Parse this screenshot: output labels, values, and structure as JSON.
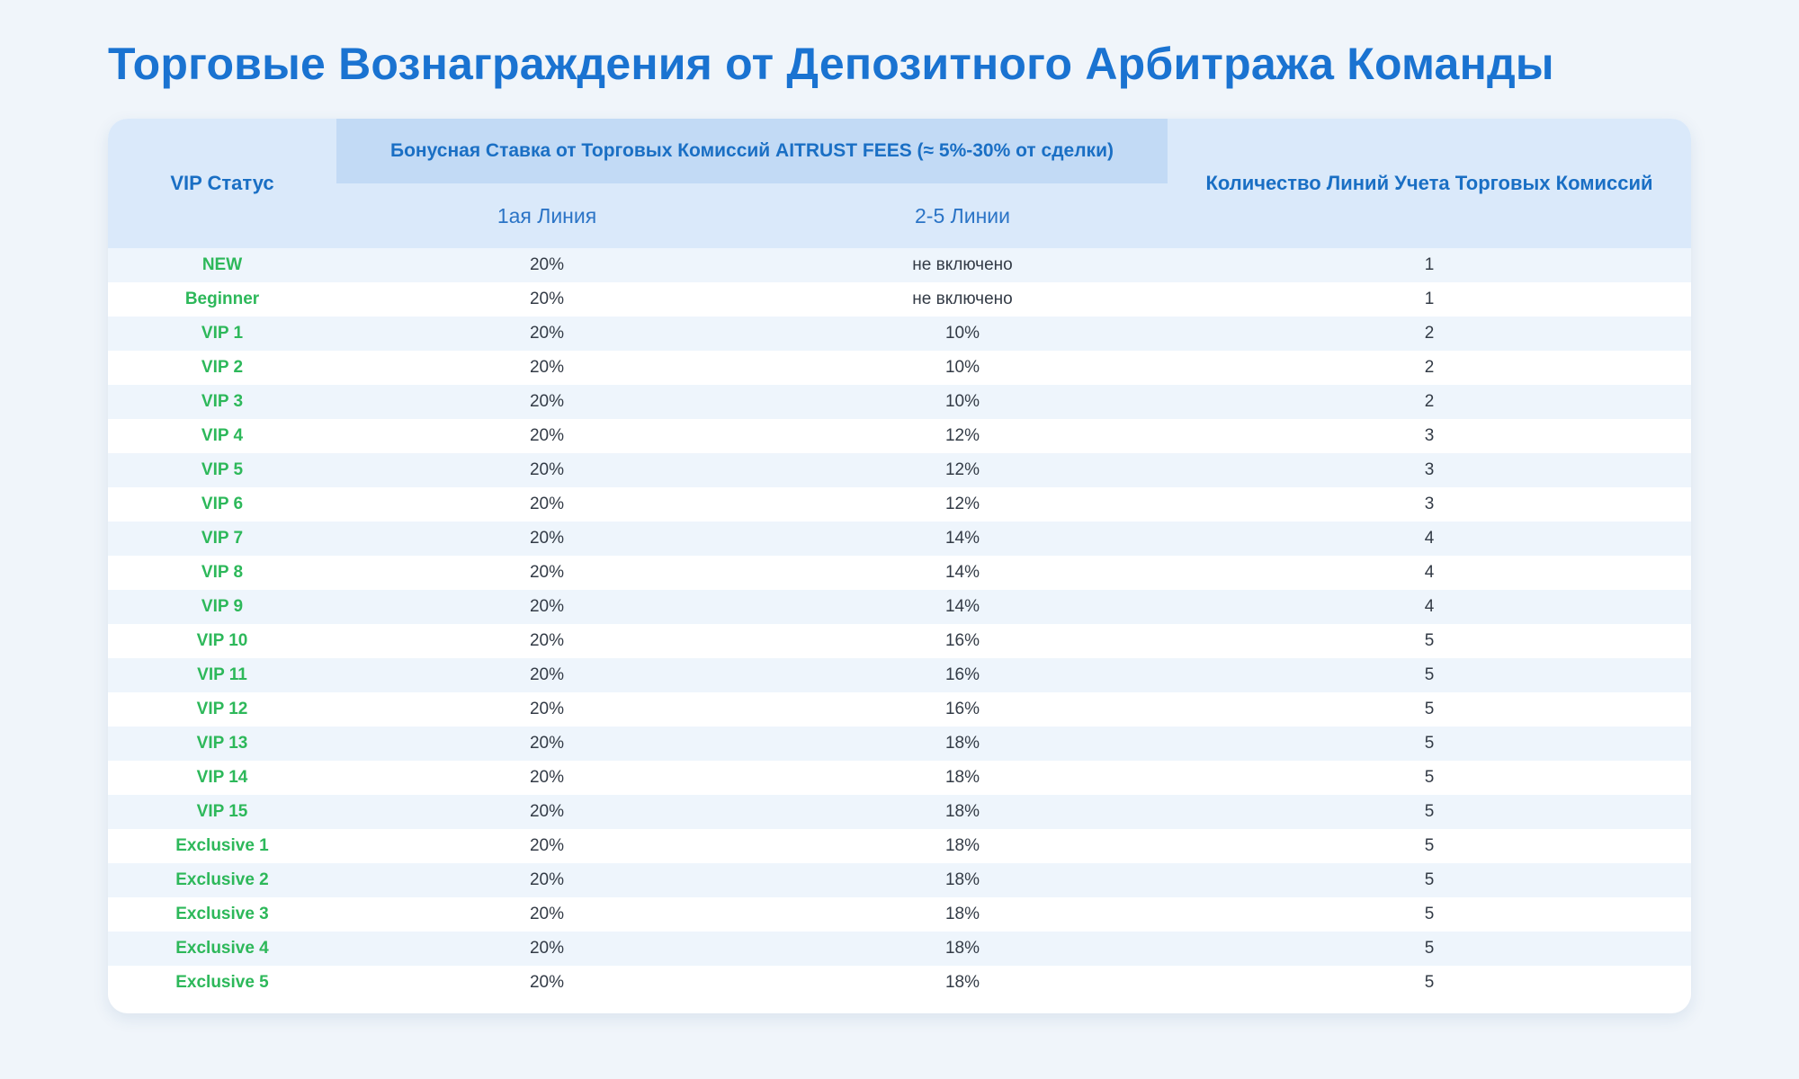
{
  "title": "Торговые Вознаграждения от Депозитного Арбитража Команды",
  "table": {
    "headers": {
      "status": "VIP Статус",
      "group": "Бонусная Ставка от Торговых Комиссий AITRUST FEES (≈ 5%-30% от сделки)",
      "line1": "1ая Линия",
      "lines2_5": "2-5 Линии",
      "lines_count": "Количество Линий Учета Торговых Комиссий"
    },
    "rows": [
      {
        "status": "NEW",
        "line1": "20%",
        "lines2_5": "не включено",
        "lines": "1"
      },
      {
        "status": "Beginner",
        "line1": "20%",
        "lines2_5": "не включено",
        "lines": "1"
      },
      {
        "status": "VIP 1",
        "line1": "20%",
        "lines2_5": "10%",
        "lines": "2"
      },
      {
        "status": "VIP 2",
        "line1": "20%",
        "lines2_5": "10%",
        "lines": "2"
      },
      {
        "status": "VIP 3",
        "line1": "20%",
        "lines2_5": "10%",
        "lines": "2"
      },
      {
        "status": "VIP 4",
        "line1": "20%",
        "lines2_5": "12%",
        "lines": "3"
      },
      {
        "status": "VIP 5",
        "line1": "20%",
        "lines2_5": "12%",
        "lines": "3"
      },
      {
        "status": "VIP 6",
        "line1": "20%",
        "lines2_5": "12%",
        "lines": "3"
      },
      {
        "status": "VIP 7",
        "line1": "20%",
        "lines2_5": "14%",
        "lines": "4"
      },
      {
        "status": "VIP 8",
        "line1": "20%",
        "lines2_5": "14%",
        "lines": "4"
      },
      {
        "status": "VIP 9",
        "line1": "20%",
        "lines2_5": "14%",
        "lines": "4"
      },
      {
        "status": "VIP 10",
        "line1": "20%",
        "lines2_5": "16%",
        "lines": "5"
      },
      {
        "status": "VIP 11",
        "line1": "20%",
        "lines2_5": "16%",
        "lines": "5"
      },
      {
        "status": "VIP 12",
        "line1": "20%",
        "lines2_5": "16%",
        "lines": "5"
      },
      {
        "status": "VIP 13",
        "line1": "20%",
        "lines2_5": "18%",
        "lines": "5"
      },
      {
        "status": "VIP 14",
        "line1": "20%",
        "lines2_5": "18%",
        "lines": "5"
      },
      {
        "status": "VIP 15",
        "line1": "20%",
        "lines2_5": "18%",
        "lines": "5"
      },
      {
        "status": "Exclusive 1",
        "line1": "20%",
        "lines2_5": "18%",
        "lines": "5"
      },
      {
        "status": "Exclusive 2",
        "line1": "20%",
        "lines2_5": "18%",
        "lines": "5"
      },
      {
        "status": "Exclusive 3",
        "line1": "20%",
        "lines2_5": "18%",
        "lines": "5"
      },
      {
        "status": "Exclusive 4",
        "line1": "20%",
        "lines2_5": "18%",
        "lines": "5"
      },
      {
        "status": "Exclusive 5",
        "line1": "20%",
        "lines2_5": "18%",
        "lines": "5"
      }
    ]
  },
  "colors": {
    "title": "#1a73d1",
    "header_bg": "#dae9fa",
    "group_header_bg": "#c2daf5",
    "status_text": "#2db85a",
    "row_alt_bg": "#eef5fc"
  }
}
